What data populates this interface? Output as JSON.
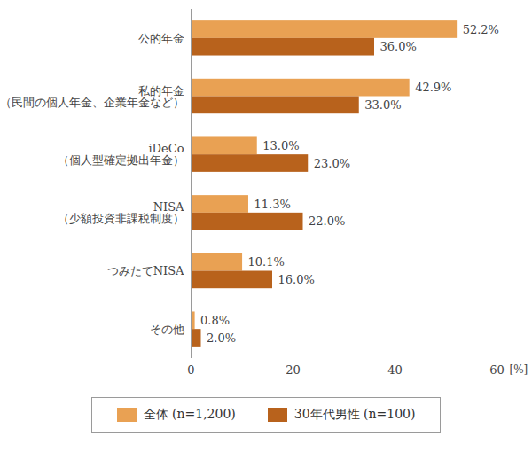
{
  "chart_data": {
    "type": "bar",
    "orientation": "horizontal",
    "categories": [
      "公的年金",
      "私的年金\n（民間の個人年金、企業年金など）",
      "iDeCo\n（個人型確定拠出年金）",
      "NISA\n（少額投資非課税制度）",
      "つみたてNISA",
      "その他"
    ],
    "series": [
      {
        "name": "全体 (n=1,200)",
        "color": "#e9a153",
        "values": [
          52.2,
          42.9,
          13.0,
          11.3,
          10.1,
          0.8
        ],
        "value_labels": [
          "52.2%",
          "42.9%",
          "13.0%",
          "11.3%",
          "10.1%",
          "0.8%"
        ]
      },
      {
        "name": "30年代男性 (n=100)",
        "color": "#b8621c",
        "values": [
          36.0,
          33.0,
          23.0,
          22.0,
          16.0,
          2.0
        ],
        "value_labels": [
          "36.0%",
          "33.0%",
          "23.0%",
          "22.0%",
          "16.0%",
          "2.0%"
        ]
      }
    ],
    "xlabel": "[%]",
    "xlim": [
      0,
      60
    ],
    "xticks": [
      0,
      20,
      40,
      60
    ],
    "grid": true,
    "data_labels": true,
    "legend": "bottom"
  }
}
